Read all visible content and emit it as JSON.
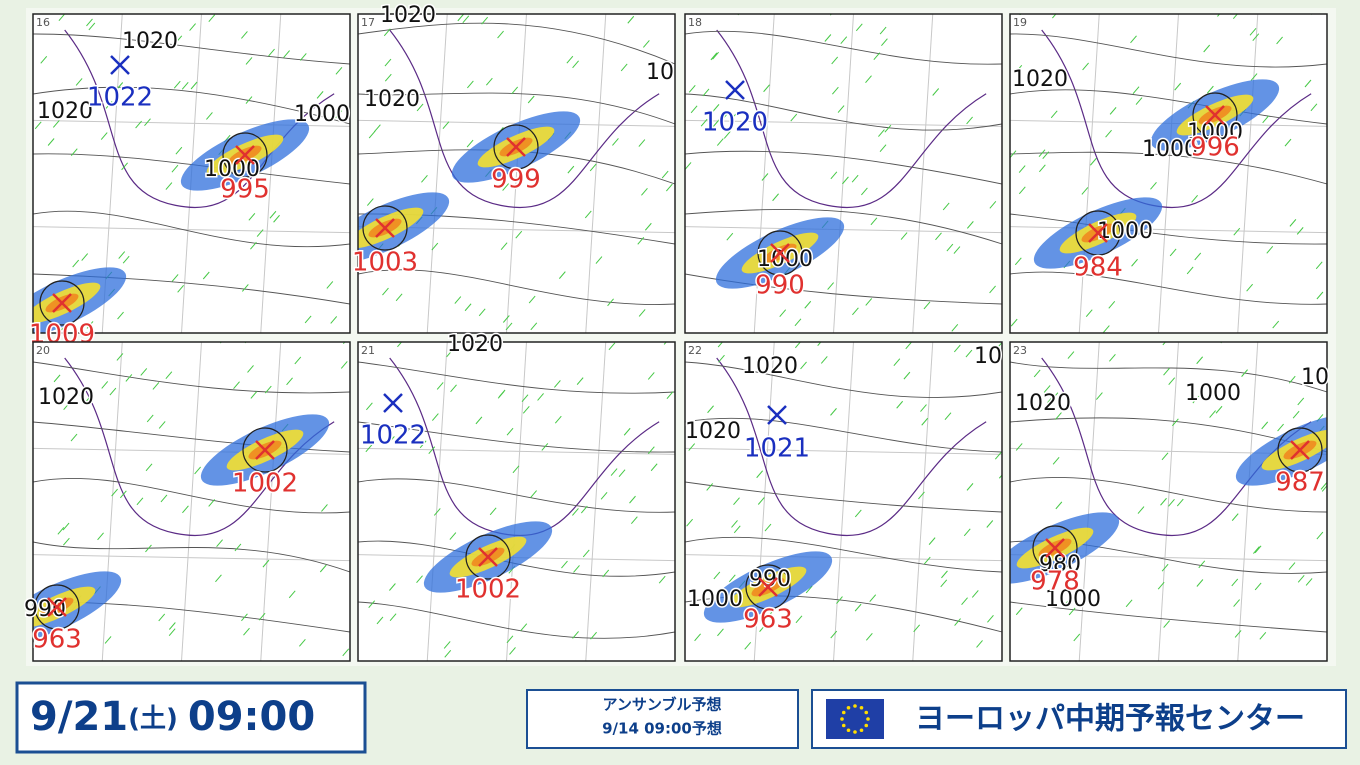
{
  "panels": [
    {
      "number": "16",
      "isobars": [
        "1020",
        "1020",
        "1000",
        "1000"
      ],
      "highs": [
        "1022"
      ],
      "lows": [
        "995",
        "1009"
      ]
    },
    {
      "number": "17",
      "isobars": [
        "1020",
        "1020",
        "10"
      ],
      "highs": [],
      "lows": [
        "999",
        "1003"
      ]
    },
    {
      "number": "18",
      "isobars": [
        "1000"
      ],
      "highs": [
        "1020"
      ],
      "lows": [
        "990"
      ]
    },
    {
      "number": "19",
      "isobars": [
        "1020",
        "1000",
        "1000",
        "1000"
      ],
      "highs": [],
      "lows": [
        "996",
        "984"
      ]
    },
    {
      "number": "20",
      "isobars": [
        "1020",
        "990"
      ],
      "highs": [],
      "lows": [
        "1002",
        "963"
      ]
    },
    {
      "number": "21",
      "isobars": [
        "1020"
      ],
      "highs": [
        "1022"
      ],
      "lows": [
        "1002"
      ]
    },
    {
      "number": "22",
      "isobars": [
        "1020",
        "1020",
        "10",
        "1000",
        "990"
      ],
      "highs": [
        "1021"
      ],
      "lows": [
        "963"
      ]
    },
    {
      "number": "23",
      "isobars": [
        "1020",
        "1000",
        "10",
        "980",
        "1000"
      ],
      "highs": [],
      "lows": [
        "987",
        "978"
      ]
    }
  ],
  "footer": {
    "date": "9/21",
    "weekday": "(土)",
    "time": "09:00",
    "ensemble_title": "アンサンブル予想",
    "issued": "9/14 09:00予想",
    "center": "ヨーロッパ中期予報センター"
  }
}
